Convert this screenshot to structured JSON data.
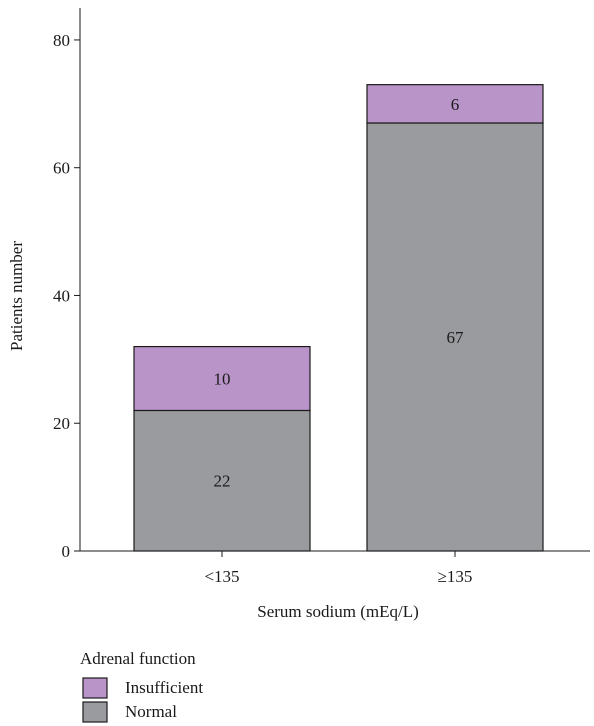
{
  "chart_data": {
    "type": "bar",
    "stacked": true,
    "title": "",
    "xlabel": "Serum sodium (mEq/L)",
    "ylabel": "Patients number",
    "categories": [
      "<135",
      "≥135"
    ],
    "series": [
      {
        "name": "Normal",
        "values": [
          22,
          67
        ],
        "color": "#9a9b9f"
      },
      {
        "name": "Insufficient",
        "values": [
          10,
          6
        ],
        "color": "#b894c8"
      }
    ],
    "ylim": [
      0,
      85
    ],
    "yticks": [
      0,
      20,
      40,
      60,
      80
    ],
    "grid": false,
    "legend": {
      "title": "Adrenal function",
      "placement": "bottom-left",
      "order": [
        "Insufficient",
        "Normal"
      ]
    }
  }
}
